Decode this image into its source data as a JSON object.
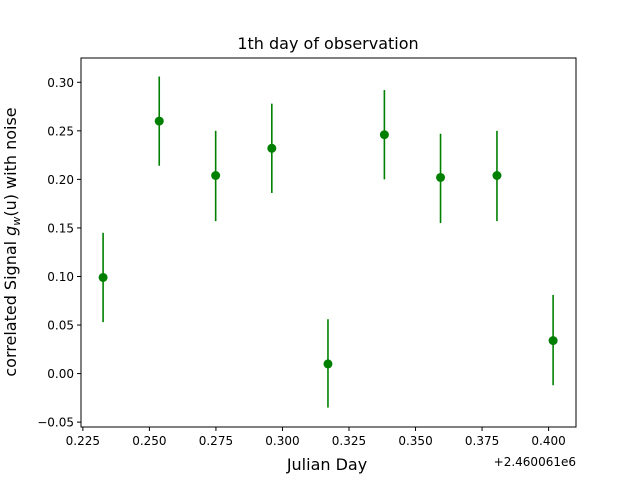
{
  "chart_data": {
    "type": "scatter",
    "title": "1th day of observation",
    "xlabel": "Julian Day",
    "ylabel_prefix": "correlated Signal ",
    "ylabel_g": "g",
    "ylabel_sub": "w",
    "ylabel_arg": "(u)",
    "ylabel_suffix": " with noise",
    "x_offset_label": "+2.460061e6",
    "xlim": [
      0.2243,
      0.4103
    ],
    "ylim": [
      -0.055,
      0.325
    ],
    "x_ticks": [
      0.225,
      0.25,
      0.275,
      0.3,
      0.325,
      0.35,
      0.375,
      0.4
    ],
    "x_tick_labels": [
      "0.225",
      "0.250",
      "0.275",
      "0.300",
      "0.325",
      "0.350",
      "0.375",
      "0.400"
    ],
    "y_ticks": [
      -0.05,
      0.0,
      0.05,
      0.1,
      0.15,
      0.2,
      0.25,
      0.3
    ],
    "y_tick_labels": [
      "−0.05",
      "0.00",
      "0.05",
      "0.10",
      "0.15",
      "0.20",
      "0.25",
      "0.30"
    ],
    "color": "#008000",
    "grid": false,
    "points": [
      {
        "x": 0.2326,
        "y": 0.099,
        "lo": 0.053,
        "hi": 0.145
      },
      {
        "x": 0.2537,
        "y": 0.26,
        "lo": 0.214,
        "hi": 0.306
      },
      {
        "x": 0.2749,
        "y": 0.204,
        "lo": 0.157,
        "hi": 0.25
      },
      {
        "x": 0.296,
        "y": 0.232,
        "lo": 0.186,
        "hi": 0.278
      },
      {
        "x": 0.3171,
        "y": 0.01,
        "lo": -0.035,
        "hi": 0.056
      },
      {
        "x": 0.3383,
        "y": 0.246,
        "lo": 0.2,
        "hi": 0.292
      },
      {
        "x": 0.3594,
        "y": 0.202,
        "lo": 0.155,
        "hi": 0.247
      },
      {
        "x": 0.3806,
        "y": 0.204,
        "lo": 0.157,
        "hi": 0.25
      },
      {
        "x": 0.4017,
        "y": 0.034,
        "lo": -0.012,
        "hi": 0.081
      }
    ]
  }
}
